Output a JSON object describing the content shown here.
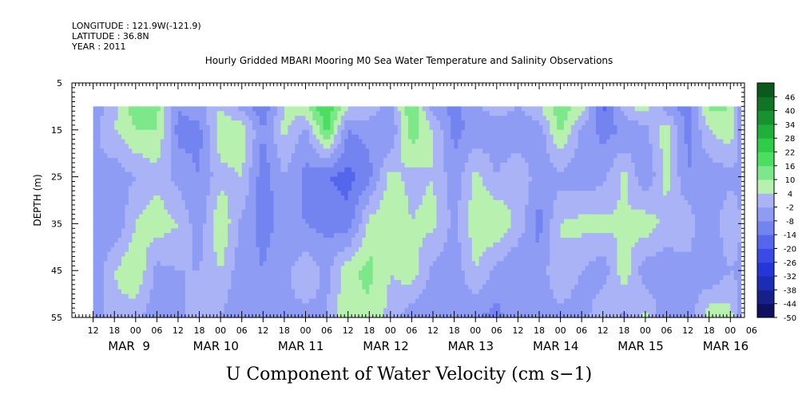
{
  "header": {
    "longitude": "LONGITUDE : 121.9W(-121.9)",
    "latitude": "LATITUDE : 36.8N",
    "year": "YEAR : 2011"
  },
  "chart_data": {
    "type": "heatmap",
    "title": "Hourly Gridded MBARI Mooring M0 Sea Water Temperature and Salinity Observations",
    "subtitle": "U Component of Water Velocity (cm s−1)",
    "ylabel": "DEPTH (m)",
    "xlabel": "",
    "y_reversed": true,
    "ylim": [
      5,
      55
    ],
    "yticks": [
      "5",
      "15",
      "25",
      "35",
      "45",
      "55"
    ],
    "data_depth_range": [
      10,
      55
    ],
    "x_range_hours": [
      -12,
      178
    ],
    "data_time_range_hours": [
      -6,
      177
    ],
    "hour_ticks": [
      "12",
      "18",
      "00",
      "06",
      "12",
      "18",
      "00",
      "06",
      "12",
      "18",
      "00",
      "06",
      "12",
      "18",
      "00",
      "06",
      "12",
      "18",
      "00",
      "06",
      "12",
      "18",
      "00",
      "06",
      "12",
      "18",
      "00",
      "06",
      "12",
      "18",
      "00",
      "06"
    ],
    "date_labels": [
      "MAR  9",
      "MAR 10",
      "MAR 11",
      "MAR 12",
      "MAR 13",
      "MAR 14",
      "MAR 15",
      "MAR 16"
    ],
    "colorbar": {
      "levels": [
        "46",
        "40",
        "34",
        "28",
        "22",
        "16",
        "10",
        "4",
        "-2",
        "-8",
        "-14",
        "-20",
        "-26",
        "-32",
        "-38",
        "-44",
        "-50"
      ],
      "range": [
        -50,
        52
      ],
      "colors": {
        "-50": "#101060",
        "-44": "#16208a",
        "-38": "#1c2cb4",
        "-32": "#2436d8",
        "-26": "#3a4ae6",
        "-20": "#5466ec",
        "-14": "#7384f0",
        "-8": "#8f9cf4",
        "-2": "#aab3f6",
        "4": "#b8f0b0",
        "10": "#7ce88a",
        "16": "#4cde60",
        "22": "#2fcc48",
        "28": "#1fb03a",
        "34": "#17922e",
        "40": "#0f7424",
        "46": "#0a5a1c"
      }
    },
    "time_columns": {
      "dt_hours": 1,
      "u_at_depth_10_15_25_35_45_55": [
        [
          -6,
          [
            -6,
            -4,
            -2,
            -4,
            -8,
            -6
          ]
        ],
        [
          0,
          [
            2,
            4,
            -6,
            -8,
            4,
            2
          ]
        ],
        [
          6,
          [
            14,
            10,
            -2,
            4,
            10,
            0
          ]
        ],
        [
          12,
          [
            12,
            10,
            2,
            8,
            -4,
            -6
          ]
        ],
        [
          18,
          [
            -8,
            -10,
            -4,
            4,
            -2,
            -4
          ]
        ],
        [
          24,
          [
            -4,
            -10,
            -8,
            -6,
            -2,
            2
          ]
        ],
        [
          30,
          [
            4,
            8,
            2,
            10,
            4,
            -2
          ]
        ],
        [
          36,
          [
            -4,
            8,
            4,
            -4,
            -6,
            -8
          ]
        ],
        [
          42,
          [
            -14,
            -8,
            -12,
            -10,
            -8,
            -6
          ]
        ],
        [
          48,
          [
            4,
            6,
            -2,
            -6,
            -4,
            -2
          ]
        ],
        [
          54,
          [
            10,
            -4,
            -10,
            -8,
            2,
            -4
          ]
        ],
        [
          60,
          [
            22,
            18,
            -14,
            -10,
            -4,
            -2
          ]
        ],
        [
          66,
          [
            4,
            -8,
            -16,
            -12,
            8,
            10
          ]
        ],
        [
          72,
          [
            2,
            -6,
            -10,
            6,
            12,
            8
          ]
        ],
        [
          78,
          [
            -4,
            -8,
            6,
            10,
            4,
            2
          ]
        ],
        [
          84,
          [
            16,
            14,
            2,
            4,
            8,
            -6
          ]
        ],
        [
          90,
          [
            -6,
            4,
            4,
            6,
            -4,
            -8
          ]
        ],
        [
          96,
          [
            -10,
            -10,
            -6,
            -4,
            -6,
            -6
          ]
        ],
        [
          102,
          [
            -4,
            -6,
            6,
            8,
            4,
            -8
          ]
        ],
        [
          108,
          [
            2,
            -6,
            -2,
            10,
            -4,
            -10
          ]
        ],
        [
          114,
          [
            -2,
            -8,
            4,
            2,
            -8,
            -4
          ]
        ],
        [
          120,
          [
            4,
            -6,
            -6,
            -10,
            -6,
            -6
          ]
        ],
        [
          126,
          [
            14,
            12,
            -4,
            4,
            4,
            -4
          ]
        ],
        [
          132,
          [
            8,
            -4,
            -6,
            6,
            -2,
            -6
          ]
        ],
        [
          138,
          [
            -16,
            -10,
            -4,
            6,
            -6,
            4
          ]
        ],
        [
          144,
          [
            2,
            -8,
            6,
            4,
            8,
            -4
          ]
        ],
        [
          150,
          [
            8,
            -4,
            -8,
            8,
            -6,
            6
          ]
        ],
        [
          156,
          [
            -6,
            8,
            6,
            2,
            -6,
            -8
          ]
        ],
        [
          162,
          [
            -12,
            -10,
            -8,
            2,
            -4,
            -6
          ]
        ],
        [
          168,
          [
            12,
            4,
            -6,
            -8,
            -8,
            8
          ]
        ],
        [
          174,
          [
            10,
            8,
            -4,
            4,
            -2,
            6
          ]
        ],
        [
          177,
          [
            -6,
            -4,
            -4,
            -2,
            -4,
            -4
          ]
        ]
      ]
    }
  }
}
